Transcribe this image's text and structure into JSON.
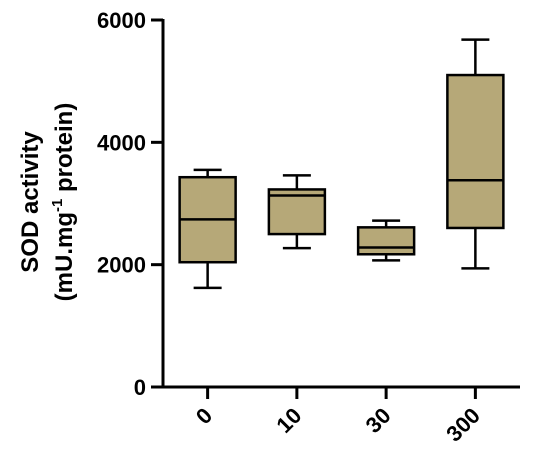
{
  "chart_data": {
    "type": "box",
    "ylabel_line1": "SOD activity",
    "ylabel_line2_pre": "(mU.mg",
    "ylabel_line2_sup": "-1",
    "ylabel_line2_post": " protein)",
    "ylim": [
      0,
      6000
    ],
    "yticks": [
      0,
      2000,
      4000,
      6000
    ],
    "ytick_labels": [
      "0",
      "2000",
      "4000",
      "6000"
    ],
    "categories": [
      "0",
      "10",
      "30",
      "300"
    ],
    "boxes": [
      {
        "category": "0",
        "min": 1620,
        "q1": 2040,
        "median": 2740,
        "q3": 3430,
        "max": 3550
      },
      {
        "category": "10",
        "min": 2270,
        "q1": 2500,
        "median": 3130,
        "q3": 3230,
        "max": 3460
      },
      {
        "category": "30",
        "min": 2070,
        "q1": 2170,
        "median": 2280,
        "q3": 2610,
        "max": 2720
      },
      {
        "category": "300",
        "min": 1940,
        "q1": 2600,
        "median": 3380,
        "q3": 5100,
        "max": 5680
      }
    ],
    "box_color": "#b6a878",
    "line_color": "#000000",
    "grid": false
  }
}
